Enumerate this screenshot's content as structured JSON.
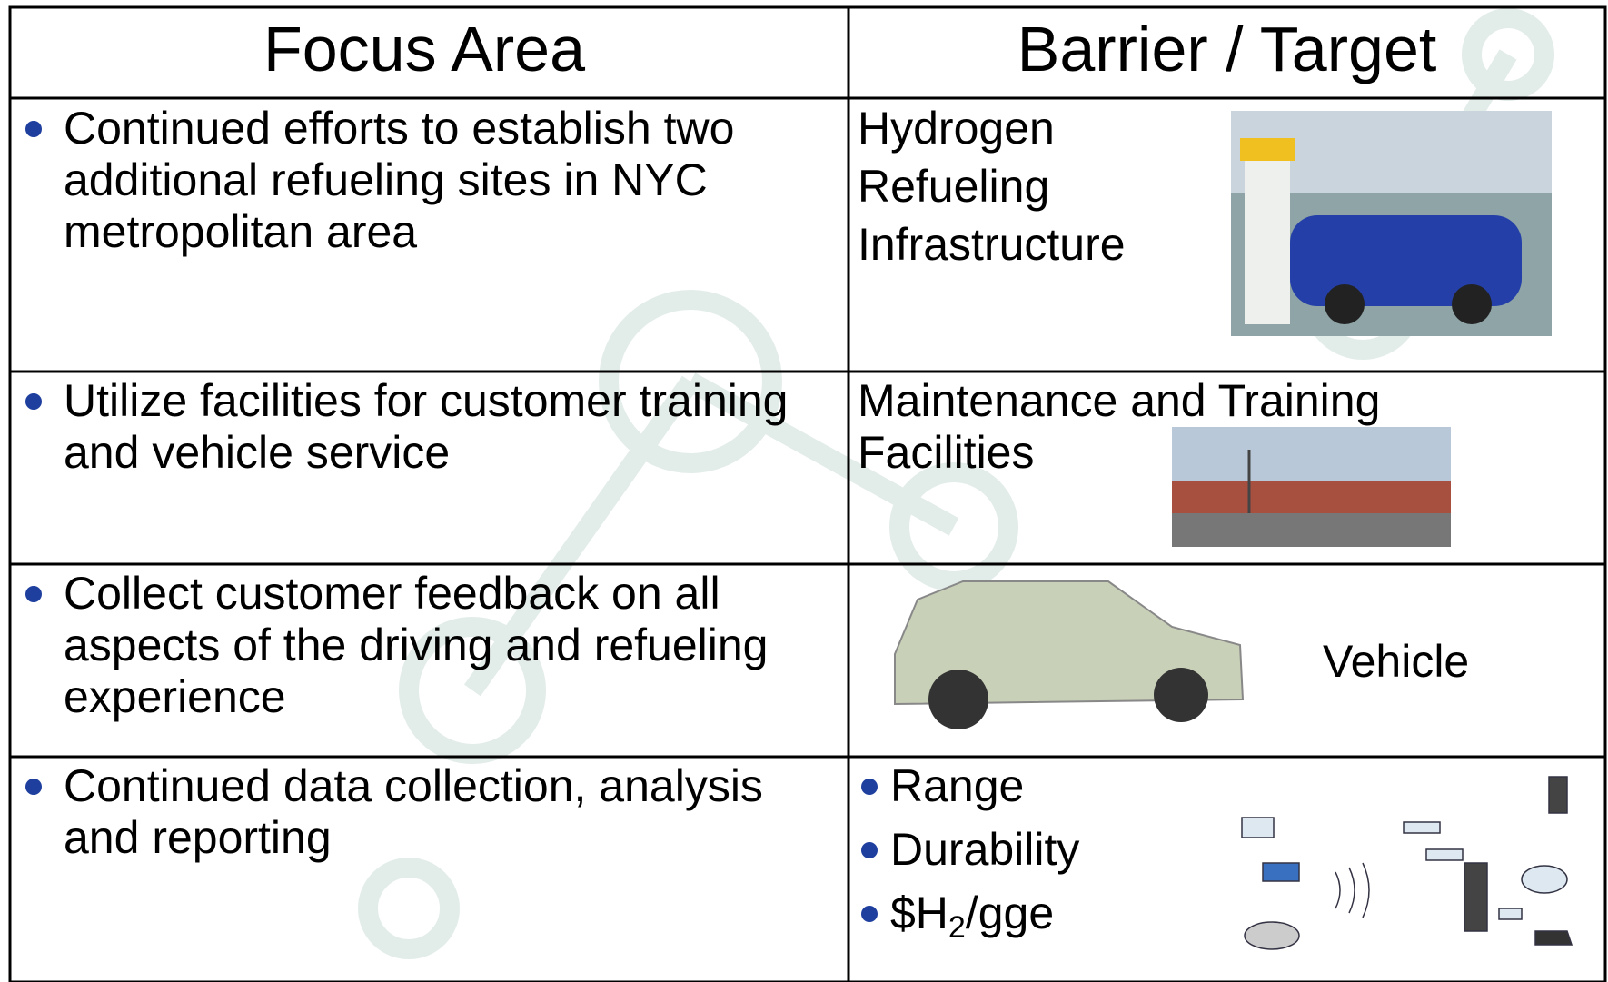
{
  "table": {
    "header": [
      "Focus Area",
      "Barrier / Target"
    ],
    "rows": [
      {
        "focus": [
          "Continued efforts to establish two",
          "additional refueling sites in NYC",
          "metropolitan area"
        ],
        "barrier": [
          "Hydrogen",
          "Refueling",
          "Infrastructure"
        ]
      },
      {
        "focus": [
          "Utilize facilities for customer training",
          "and vehicle service"
        ],
        "barrier": [
          "Maintenance and Training",
          "Facilities"
        ]
      },
      {
        "focus": [
          "Collect customer feedback on all",
          "aspects of the driving and refueling",
          "experience"
        ],
        "barrier": [
          "Vehicle"
        ]
      },
      {
        "focus": [
          "Continued data collection, analysis",
          "and reporting"
        ],
        "barrier_bullets": [
          {
            "text": "Range"
          },
          {
            "text": "Durability"
          },
          {
            "prefix": "$H",
            "subscript": "2",
            "suffix": "/gge"
          }
        ]
      }
    ]
  }
}
